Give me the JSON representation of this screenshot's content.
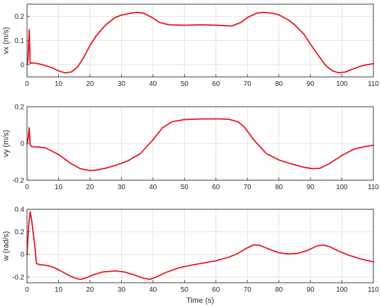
{
  "chart_data": [
    {
      "type": "line",
      "ylabel": "vx (m/s)",
      "xlabel": "",
      "xlim": [
        0,
        110
      ],
      "ylim": [
        -0.05,
        0.25
      ],
      "grid": true,
      "xticks": [
        "0",
        "10",
        "20",
        "30",
        "40",
        "50",
        "60",
        "70",
        "80",
        "90",
        "100",
        "110"
      ],
      "yticks": [
        "0",
        "0.1",
        "0.2"
      ],
      "ytick_values": [
        0,
        0.1,
        0.2
      ],
      "series": [
        {
          "color": "#e8141e",
          "x": [
            0,
            0.3,
            0.7,
            1.0,
            1.3,
            2,
            3,
            5,
            8,
            10,
            12,
            14,
            16,
            18,
            20,
            22,
            25,
            28,
            30,
            33,
            35,
            37,
            40,
            42,
            45,
            50,
            55,
            60,
            65,
            68,
            70,
            73,
            75,
            78,
            80,
            83,
            85,
            88,
            90,
            93,
            95,
            97,
            99,
            101,
            104,
            107,
            110
          ],
          "y": [
            0,
            0.02,
            0.145,
            0.005,
            0.008,
            0.007,
            0.006,
            0.0,
            -0.012,
            -0.025,
            -0.033,
            -0.03,
            -0.01,
            0.03,
            0.08,
            0.12,
            0.165,
            0.195,
            0.205,
            0.213,
            0.216,
            0.213,
            0.193,
            0.175,
            0.165,
            0.163,
            0.165,
            0.163,
            0.16,
            0.175,
            0.195,
            0.213,
            0.216,
            0.213,
            0.206,
            0.185,
            0.165,
            0.125,
            0.085,
            0.03,
            -0.005,
            -0.025,
            -0.033,
            -0.03,
            -0.015,
            -0.002,
            0.005
          ]
        }
      ]
    },
    {
      "type": "line",
      "ylabel": "vy (m/s)",
      "xlabel": "",
      "xlim": [
        0,
        110
      ],
      "ylim": [
        -0.2,
        0.2
      ],
      "grid": true,
      "xticks": [
        "0",
        "10",
        "20",
        "30",
        "40",
        "50",
        "60",
        "70",
        "80",
        "90",
        "100",
        "110"
      ],
      "yticks": [
        "-0.2",
        "0",
        "0.2"
      ],
      "ytick_values": [
        -0.2,
        0,
        0.2
      ],
      "series": [
        {
          "color": "#e8141e",
          "x": [
            0,
            0.3,
            0.7,
            1.0,
            1.3,
            2,
            4,
            6,
            10,
            14,
            17,
            20,
            22,
            25,
            28,
            32,
            36,
            40,
            43,
            46,
            50,
            55,
            60,
            64,
            67,
            69,
            72,
            76,
            80,
            84,
            88,
            91,
            93,
            96,
            100,
            104,
            107,
            110
          ],
          "y": [
            0,
            0.02,
            0.085,
            -0.005,
            -0.015,
            -0.018,
            -0.02,
            -0.025,
            -0.06,
            -0.11,
            -0.138,
            -0.148,
            -0.145,
            -0.135,
            -0.12,
            -0.095,
            -0.055,
            0.02,
            0.085,
            0.118,
            0.13,
            0.133,
            0.134,
            0.132,
            0.118,
            0.09,
            0.02,
            -0.055,
            -0.09,
            -0.112,
            -0.13,
            -0.138,
            -0.135,
            -0.11,
            -0.065,
            -0.03,
            -0.018,
            -0.01
          ]
        }
      ]
    },
    {
      "type": "line",
      "ylabel": "w (rad/s)",
      "xlabel": "Time (s)",
      "xlim": [
        0,
        110
      ],
      "ylim": [
        -0.25,
        0.4
      ],
      "grid": true,
      "xticks": [
        "0",
        "10",
        "20",
        "30",
        "40",
        "50",
        "60",
        "70",
        "80",
        "90",
        "100",
        "110"
      ],
      "yticks": [
        "-0.2",
        "0",
        "0.2",
        "0.4"
      ],
      "ytick_values": [
        -0.2,
        0,
        0.2,
        0.4
      ],
      "series": [
        {
          "color": "#e8141e",
          "x": [
            0,
            0.5,
            1.0,
            1.5,
            2.0,
            2.5,
            3.0,
            4,
            6,
            8,
            10,
            12,
            14,
            16,
            17,
            19,
            21,
            24,
            28,
            31,
            34,
            37,
            39,
            41,
            44,
            48,
            52,
            56,
            60,
            64,
            67,
            70,
            72,
            74,
            77,
            80,
            83,
            86,
            89,
            92,
            94,
            96,
            99,
            102,
            106,
            110
          ],
          "y": [
            0.0,
            0.25,
            0.38,
            0.3,
            0.18,
            0.07,
            -0.08,
            -0.09,
            -0.095,
            -0.11,
            -0.135,
            -0.165,
            -0.195,
            -0.215,
            -0.22,
            -0.205,
            -0.18,
            -0.155,
            -0.145,
            -0.155,
            -0.18,
            -0.21,
            -0.22,
            -0.2,
            -0.16,
            -0.12,
            -0.095,
            -0.075,
            -0.055,
            -0.025,
            0.01,
            0.06,
            0.085,
            0.08,
            0.045,
            0.015,
            0.005,
            0.01,
            0.035,
            0.075,
            0.085,
            0.07,
            0.03,
            -0.005,
            -0.04,
            -0.065
          ]
        }
      ]
    }
  ]
}
